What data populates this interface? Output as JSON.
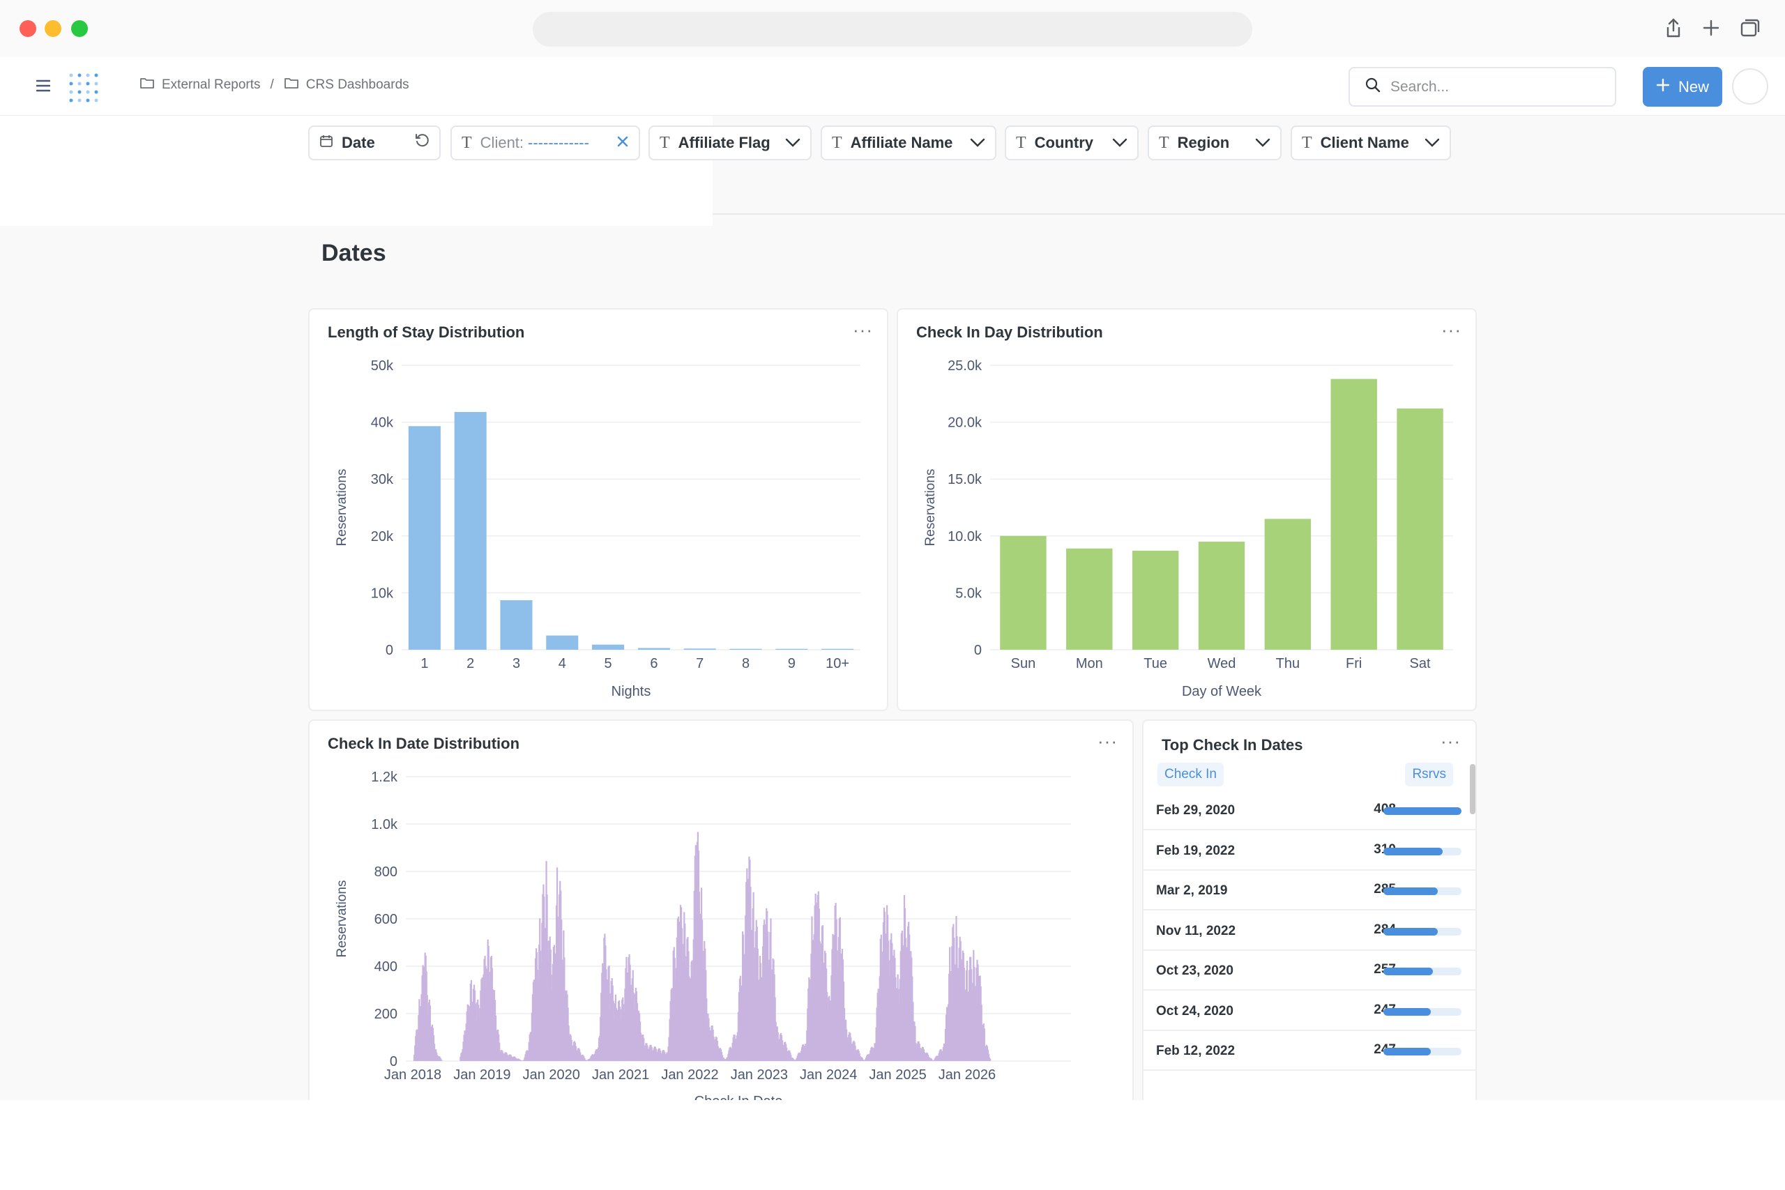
{
  "breadcrumb": {
    "items": [
      "External Reports",
      "CRS Dashboards"
    ],
    "separator": "/"
  },
  "search": {
    "placeholder": "Search..."
  },
  "new_button": {
    "label": "New"
  },
  "filters": [
    {
      "label": "Date"
    },
    {
      "label": "Client:",
      "value": "------------"
    },
    {
      "label": "Affiliate Flag"
    },
    {
      "label": "Affiliate Name"
    },
    {
      "label": "Country"
    },
    {
      "label": "Region"
    },
    {
      "label": "Client Name"
    }
  ],
  "section": {
    "title": "Dates"
  },
  "colors": {
    "accent": "#4a8fde",
    "los_bar": "#8ebfea",
    "dow_bar": "#a8d27a",
    "date_bar": "#c9b4e0"
  },
  "charts": {
    "los": {
      "title": "Length of Stay Distribution"
    },
    "dow": {
      "title": "Check In Day Distribution"
    },
    "date": {
      "title": "Check In Date Distribution"
    }
  },
  "chart_data": [
    {
      "type": "bar",
      "title": "Length of Stay Distribution",
      "xlabel": "Nights",
      "ylabel": "Reservations",
      "categories": [
        "1",
        "2",
        "3",
        "4",
        "5",
        "6",
        "7",
        "8",
        "9",
        "10+"
      ],
      "values": [
        39300,
        41800,
        8700,
        2500,
        900,
        300,
        200,
        150,
        150,
        150
      ],
      "ylim": [
        0,
        50000
      ],
      "yticks": [
        "0",
        "10k",
        "20k",
        "30k",
        "40k",
        "50k"
      ],
      "grid": true
    },
    {
      "type": "bar",
      "title": "Check In Day Distribution",
      "xlabel": "Day of Week",
      "ylabel": "Reservations",
      "categories": [
        "Sun",
        "Mon",
        "Tue",
        "Wed",
        "Thu",
        "Fri",
        "Sat"
      ],
      "values": [
        10000,
        8900,
        8700,
        9500,
        11500,
        23800,
        21200
      ],
      "ylim": [
        0,
        25000
      ],
      "yticks": [
        "0",
        "5.0k",
        "10.0k",
        "15.0k",
        "20.0k",
        "25.0k"
      ],
      "grid": true
    },
    {
      "type": "bar",
      "title": "Check In Date Distribution",
      "xlabel": "Check In Date",
      "ylabel": "Reservations",
      "x_tick_labels": [
        "Jan 2018",
        "Jan 2019",
        "Jan 2020",
        "Jan 2021",
        "Jan 2022",
        "Jan 2023",
        "Jan 2024",
        "Jan 2025",
        "Jan 2026"
      ],
      "series": [
        {
          "values": [
            {
              "x": "2018-01",
              "y": 0
            },
            {
              "x": "2018-02",
              "y": 280
            },
            {
              "x": "2018-03",
              "y": 480
            },
            {
              "x": "2018-04",
              "y": 200
            },
            {
              "x": "2018-05",
              "y": 40
            },
            {
              "x": "2018-06",
              "y": 0
            },
            {
              "x": "2018-09",
              "y": 0
            },
            {
              "x": "2018-10",
              "y": 150
            },
            {
              "x": "2018-11",
              "y": 400
            },
            {
              "x": "2018-12",
              "y": 250
            },
            {
              "x": "2019-01",
              "y": 380
            },
            {
              "x": "2019-02",
              "y": 590
            },
            {
              "x": "2019-03",
              "y": 300
            },
            {
              "x": "2019-04",
              "y": 50
            },
            {
              "x": "2019-08",
              "y": 0
            },
            {
              "x": "2019-09",
              "y": 80
            },
            {
              "x": "2019-10",
              "y": 420
            },
            {
              "x": "2019-11",
              "y": 650
            },
            {
              "x": "2019-12",
              "y": 850
            },
            {
              "x": "2020-01",
              "y": 350
            },
            {
              "x": "2020-02",
              "y": 900
            },
            {
              "x": "2020-03",
              "y": 560
            },
            {
              "x": "2020-04",
              "y": 120
            },
            {
              "x": "2020-07",
              "y": 0
            },
            {
              "x": "2020-09",
              "y": 60
            },
            {
              "x": "2020-10",
              "y": 560
            },
            {
              "x": "2020-11",
              "y": 380
            },
            {
              "x": "2020-12",
              "y": 300
            },
            {
              "x": "2021-01",
              "y": 230
            },
            {
              "x": "2021-02",
              "y": 470
            },
            {
              "x": "2021-03",
              "y": 420
            },
            {
              "x": "2021-04",
              "y": 220
            },
            {
              "x": "2021-05",
              "y": 80
            },
            {
              "x": "2021-09",
              "y": 40
            },
            {
              "x": "2021-10",
              "y": 470
            },
            {
              "x": "2021-11",
              "y": 650
            },
            {
              "x": "2021-12",
              "y": 700
            },
            {
              "x": "2022-01",
              "y": 350
            },
            {
              "x": "2022-02",
              "y": 1040
            },
            {
              "x": "2022-03",
              "y": 750
            },
            {
              "x": "2022-04",
              "y": 200
            },
            {
              "x": "2022-07",
              "y": 0
            },
            {
              "x": "2022-09",
              "y": 150
            },
            {
              "x": "2022-10",
              "y": 550
            },
            {
              "x": "2022-11",
              "y": 910
            },
            {
              "x": "2022-12",
              "y": 700
            },
            {
              "x": "2023-01",
              "y": 450
            },
            {
              "x": "2023-02",
              "y": 660
            },
            {
              "x": "2023-03",
              "y": 600
            },
            {
              "x": "2023-04",
              "y": 150
            },
            {
              "x": "2023-07",
              "y": 0
            },
            {
              "x": "2023-09",
              "y": 100
            },
            {
              "x": "2023-10",
              "y": 650
            },
            {
              "x": "2023-11",
              "y": 740
            },
            {
              "x": "2023-12",
              "y": 550
            },
            {
              "x": "2024-01",
              "y": 300
            },
            {
              "x": "2024-02",
              "y": 680
            },
            {
              "x": "2024-03",
              "y": 600
            },
            {
              "x": "2024-04",
              "y": 150
            },
            {
              "x": "2024-07",
              "y": 0
            },
            {
              "x": "2024-09",
              "y": 90
            },
            {
              "x": "2024-10",
              "y": 640
            },
            {
              "x": "2024-11",
              "y": 660
            },
            {
              "x": "2024-12",
              "y": 500
            },
            {
              "x": "2025-01",
              "y": 380
            },
            {
              "x": "2025-02",
              "y": 700
            },
            {
              "x": "2025-03",
              "y": 550
            },
            {
              "x": "2025-04",
              "y": 100
            },
            {
              "x": "2025-07",
              "y": 0
            },
            {
              "x": "2025-09",
              "y": 80
            },
            {
              "x": "2025-10",
              "y": 550
            },
            {
              "x": "2025-11",
              "y": 620
            },
            {
              "x": "2025-12",
              "y": 480
            },
            {
              "x": "2026-01",
              "y": 420
            },
            {
              "x": "2026-02",
              "y": 480
            },
            {
              "x": "2026-03",
              "y": 400
            },
            {
              "x": "2026-04",
              "y": 100
            },
            {
              "x": "2026-05",
              "y": 0
            }
          ]
        }
      ],
      "ylim": [
        0,
        1200
      ],
      "yticks": [
        "0",
        "200",
        "400",
        "600",
        "800",
        "1.0k",
        "1.2k"
      ],
      "grid": true
    },
    {
      "type": "table",
      "title": "Top Check In Dates",
      "columns": [
        "Check In",
        "Rsrvs"
      ],
      "rows": [
        {
          "date": "Feb 29, 2020",
          "value": 408
        },
        {
          "date": "Feb 19, 2022",
          "value": 310
        },
        {
          "date": "Mar 2, 2019",
          "value": 285
        },
        {
          "date": "Nov 11, 2022",
          "value": 284
        },
        {
          "date": "Oct 23, 2020",
          "value": 257
        },
        {
          "date": "Oct 24, 2020",
          "value": 247
        },
        {
          "date": "Feb 12, 2022",
          "value": 247
        }
      ],
      "max_value": 408
    }
  ]
}
